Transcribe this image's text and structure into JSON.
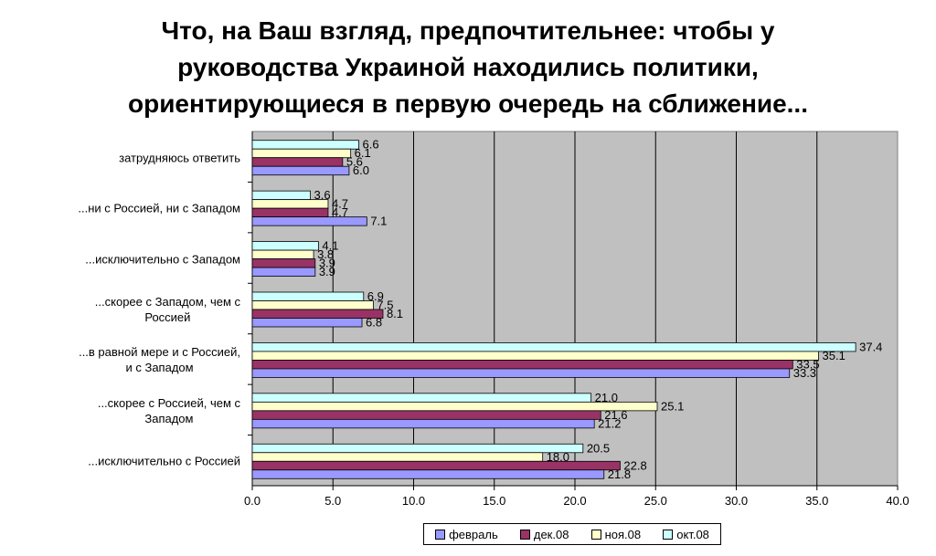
{
  "chart_data": {
    "type": "bar",
    "orientation": "horizontal",
    "title_lines": [
      "Что, на Ваш взгляд, предпочтительнее: чтобы у",
      "руководства Украиной находились политики,",
      "ориентирующиеся в первую очередь на сближение..."
    ],
    "categories": [
      [
        "затрудняюсь ответить"
      ],
      [
        "...ни с Россией, ни с Западом"
      ],
      [
        "...исключительно с Западом"
      ],
      [
        "...скорее с Западом, чем с",
        "Россией"
      ],
      [
        "...в равной мере и с Россией,",
        "и с Западом"
      ],
      [
        "...скорее с Россией, чем с",
        "Западом"
      ],
      [
        "...исключительно с Россией"
      ]
    ],
    "series": [
      {
        "name": "окт.08",
        "color": "#CCFFFF",
        "values": [
          "6.6",
          "3.6",
          "4.1",
          "6.9",
          "37.4",
          "21.0",
          "20.5"
        ]
      },
      {
        "name": "ноя.08",
        "color": "#FFFFCC",
        "values": [
          "6.1",
          "4.7",
          "3.8",
          "7.5",
          "35.1",
          "25.1",
          "18.0"
        ]
      },
      {
        "name": "дек.08",
        "color": "#993366",
        "values": [
          "5.6",
          "4.7",
          "3.9",
          "8.1",
          "33.5",
          "21.6",
          "22.8"
        ]
      },
      {
        "name": "февраль",
        "color": "#9999FF",
        "values": [
          "6.0",
          "7.1",
          "3.9",
          "6.8",
          "33.3",
          "21.2",
          "21.8"
        ]
      }
    ],
    "legend_order": [
      "февраль",
      "дек.08",
      "ноя.08",
      "окт.08"
    ],
    "xlim": [
      0,
      40
    ],
    "x_ticks": [
      "0.0",
      "5.0",
      "10.0",
      "15.0",
      "20.0",
      "25.0",
      "30.0",
      "35.0",
      "40.0"
    ],
    "grid": true,
    "plot_background": "#C0C0C0",
    "legend_position": "bottom"
  }
}
